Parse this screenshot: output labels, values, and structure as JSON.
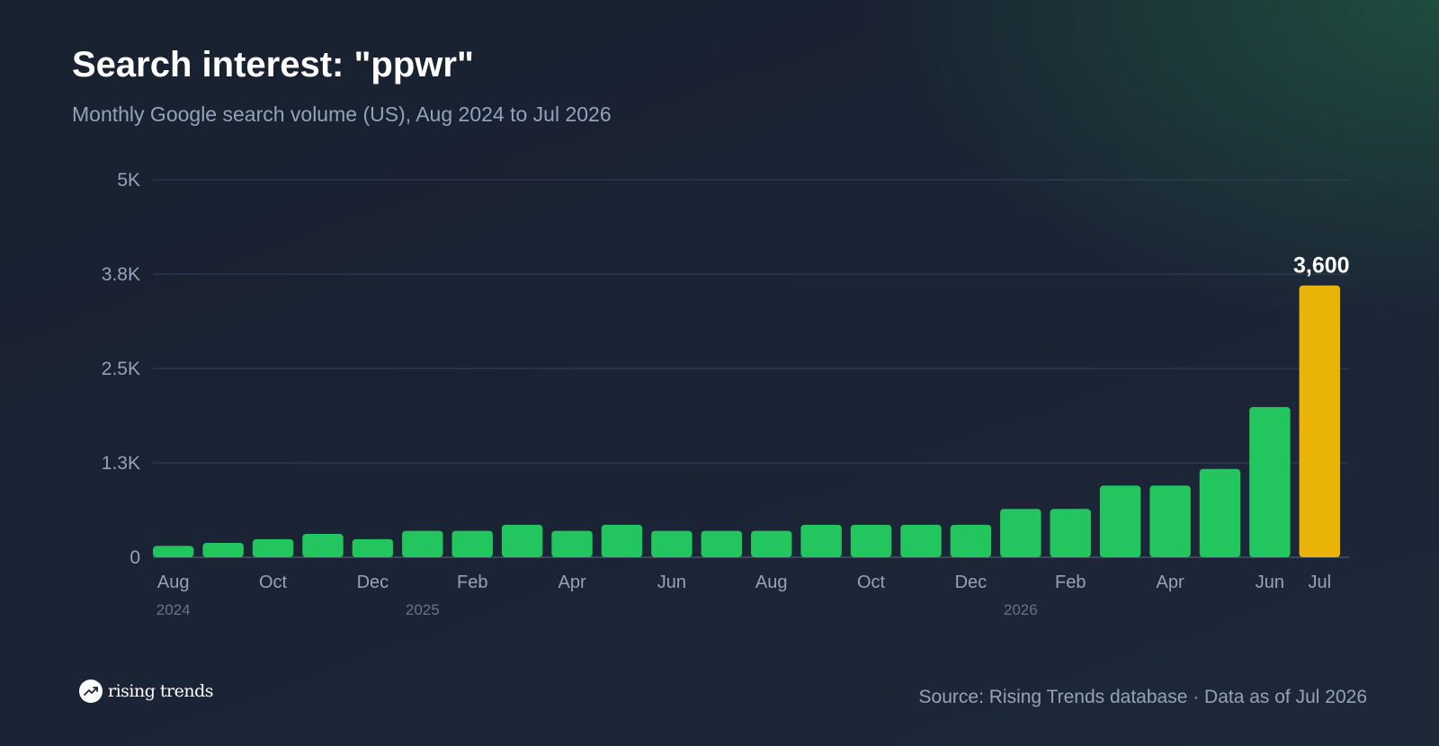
{
  "header": {
    "title": "Search interest: \"ppwr\"",
    "subtitle": "Monthly Google search volume (US), Aug 2024 to Jul 2026"
  },
  "footer": {
    "brand": "rising trends",
    "source": "Source: Rising Trends database · Data as of Jul 2026"
  },
  "colors": {
    "bar": "#22c55e",
    "highlight": "#eab308",
    "grid": "#334155",
    "tick_text": "#94a3b8",
    "year_text": "#64748b"
  },
  "chart_data": {
    "type": "bar",
    "categories": [
      "Aug 2024",
      "Sep 2024",
      "Oct 2024",
      "Nov 2024",
      "Dec 2024",
      "Jan 2025",
      "Feb 2025",
      "Mar 2025",
      "Apr 2025",
      "May 2025",
      "Jun 2025",
      "Jul 2025",
      "Aug 2025",
      "Sep 2025",
      "Oct 2025",
      "Nov 2025",
      "Dec 2025",
      "Jan 2026",
      "Feb 2026",
      "Mar 2026",
      "Apr 2026",
      "May 2026",
      "Jun 2026",
      "Jul 2026"
    ],
    "values": [
      150,
      190,
      240,
      310,
      240,
      350,
      350,
      430,
      350,
      430,
      350,
      350,
      350,
      430,
      430,
      430,
      430,
      640,
      640,
      950,
      950,
      1170,
      1990,
      3600
    ],
    "highlight_index": 23,
    "highlight_label": "3,600",
    "ylim": [
      0,
      5000
    ],
    "y_ticks": [
      0,
      1250,
      2500,
      3750,
      5000
    ],
    "y_tick_labels": [
      "0",
      "1.3K",
      "2.5K",
      "3.8K",
      "5K"
    ],
    "x_tick_labels": [
      {
        "index": 0,
        "label": "Aug"
      },
      {
        "index": 2,
        "label": "Oct"
      },
      {
        "index": 4,
        "label": "Dec"
      },
      {
        "index": 6,
        "label": "Feb"
      },
      {
        "index": 8,
        "label": "Apr"
      },
      {
        "index": 10,
        "label": "Jun"
      },
      {
        "index": 12,
        "label": "Aug"
      },
      {
        "index": 14,
        "label": "Oct"
      },
      {
        "index": 16,
        "label": "Dec"
      },
      {
        "index": 18,
        "label": "Feb"
      },
      {
        "index": 20,
        "label": "Apr"
      },
      {
        "index": 22,
        "label": "Jun"
      },
      {
        "index": 23,
        "label": "Jul"
      }
    ],
    "year_labels": [
      {
        "index": 0,
        "label": "2024"
      },
      {
        "index": 5,
        "label": "2025"
      },
      {
        "index": 17,
        "label": "2026"
      }
    ],
    "grid": true,
    "legend": "none"
  }
}
